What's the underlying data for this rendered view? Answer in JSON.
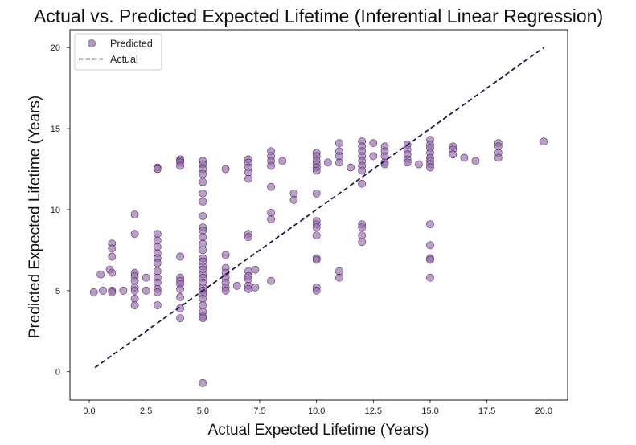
{
  "chart_data": {
    "type": "scatter",
    "title": "Actual vs. Predicted Expected Lifetime (Inferential Linear Regression)",
    "xlabel": "Actual Expected Lifetime (Years)",
    "ylabel": "Predicted Expected Lifetime (Years)",
    "xlim": [
      -0.85,
      21.05
    ],
    "ylim": [
      -1.75,
      21.1
    ],
    "xticks": [
      "0.0",
      "2.5",
      "5.0",
      "7.5",
      "10.0",
      "12.5",
      "15.0",
      "17.5",
      "20.0"
    ],
    "yticks": [
      "0",
      "5",
      "10",
      "15",
      "20"
    ],
    "grid": false,
    "legend_position": "top-left",
    "colors": {
      "point_fill": "#9c6fb0",
      "point_edge": "#3a2150",
      "line": "#1a1248"
    },
    "series": [
      {
        "name": "Predicted",
        "kind": "scatter",
        "points": [
          [
            0.2,
            4.9
          ],
          [
            0.5,
            6.0
          ],
          [
            0.6,
            5.0
          ],
          [
            0.9,
            6.3
          ],
          [
            1.0,
            7.9
          ],
          [
            1.0,
            7.6
          ],
          [
            1.0,
            7.1
          ],
          [
            1.0,
            6.1
          ],
          [
            1.0,
            5.0
          ],
          [
            1.0,
            4.9
          ],
          [
            1.5,
            5.0
          ],
          [
            2.0,
            9.7
          ],
          [
            2.0,
            8.5
          ],
          [
            2.0,
            6.1
          ],
          [
            2.0,
            5.9
          ],
          [
            2.0,
            5.6
          ],
          [
            2.0,
            5.2
          ],
          [
            2.0,
            5.0
          ],
          [
            2.0,
            4.5
          ],
          [
            2.0,
            4.1
          ],
          [
            2.5,
            5.8
          ],
          [
            2.5,
            5.0
          ],
          [
            3.0,
            12.6
          ],
          [
            3.0,
            12.5
          ],
          [
            3.0,
            8.5
          ],
          [
            3.0,
            8.1
          ],
          [
            3.0,
            7.7
          ],
          [
            3.0,
            7.3
          ],
          [
            3.0,
            7.0
          ],
          [
            3.0,
            6.7
          ],
          [
            3.0,
            6.2
          ],
          [
            3.0,
            5.8
          ],
          [
            3.0,
            5.5
          ],
          [
            3.0,
            5.1
          ],
          [
            3.0,
            4.9
          ],
          [
            3.0,
            4.1
          ],
          [
            4.0,
            13.1
          ],
          [
            4.0,
            13.0
          ],
          [
            4.0,
            12.9
          ],
          [
            4.0,
            12.7
          ],
          [
            4.0,
            7.1
          ],
          [
            4.0,
            5.8
          ],
          [
            4.0,
            5.6
          ],
          [
            4.0,
            5.4
          ],
          [
            4.0,
            5.1
          ],
          [
            4.0,
            4.6
          ],
          [
            4.0,
            3.9
          ],
          [
            4.0,
            3.3
          ],
          [
            5.0,
            13.0
          ],
          [
            5.0,
            12.8
          ],
          [
            5.0,
            12.5
          ],
          [
            5.0,
            12.2
          ],
          [
            5.0,
            11.7
          ],
          [
            5.0,
            11.0
          ],
          [
            5.0,
            10.5
          ],
          [
            5.0,
            9.6
          ],
          [
            5.0,
            8.9
          ],
          [
            5.0,
            8.7
          ],
          [
            5.0,
            8.3
          ],
          [
            5.0,
            7.9
          ],
          [
            5.0,
            7.5
          ],
          [
            5.0,
            7.0
          ],
          [
            5.0,
            6.8
          ],
          [
            5.0,
            6.5
          ],
          [
            5.0,
            6.3
          ],
          [
            5.0,
            6.0
          ],
          [
            5.0,
            5.8
          ],
          [
            5.0,
            5.5
          ],
          [
            5.0,
            5.2
          ],
          [
            5.0,
            5.0
          ],
          [
            5.0,
            4.8
          ],
          [
            5.0,
            4.5
          ],
          [
            5.0,
            4.1
          ],
          [
            5.0,
            3.7
          ],
          [
            5.0,
            3.4
          ],
          [
            5.0,
            3.3
          ],
          [
            5.0,
            -0.7
          ],
          [
            6.0,
            12.5
          ],
          [
            6.0,
            7.2
          ],
          [
            6.0,
            6.4
          ],
          [
            6.0,
            6.1
          ],
          [
            6.0,
            5.8
          ],
          [
            6.0,
            5.5
          ],
          [
            6.0,
            5.2
          ],
          [
            6.0,
            5.0
          ],
          [
            6.5,
            5.3
          ],
          [
            7.0,
            13.1
          ],
          [
            7.0,
            12.9
          ],
          [
            7.0,
            12.6
          ],
          [
            7.0,
            12.3
          ],
          [
            7.0,
            11.9
          ],
          [
            7.0,
            8.5
          ],
          [
            7.0,
            8.3
          ],
          [
            7.0,
            6.2
          ],
          [
            7.0,
            5.9
          ],
          [
            7.0,
            5.7
          ],
          [
            7.0,
            5.3
          ],
          [
            7.0,
            5.1
          ],
          [
            7.3,
            6.3
          ],
          [
            7.3,
            5.2
          ],
          [
            8.0,
            13.6
          ],
          [
            8.0,
            13.3
          ],
          [
            8.0,
            13.0
          ],
          [
            8.0,
            12.7
          ],
          [
            8.0,
            11.4
          ],
          [
            8.0,
            9.8
          ],
          [
            8.0,
            9.4
          ],
          [
            8.0,
            5.6
          ],
          [
            8.5,
            13.0
          ],
          [
            9.0,
            11.0
          ],
          [
            9.0,
            10.6
          ],
          [
            10.0,
            13.5
          ],
          [
            10.0,
            13.3
          ],
          [
            10.0,
            13.0
          ],
          [
            10.0,
            12.8
          ],
          [
            10.0,
            12.6
          ],
          [
            10.0,
            12.4
          ],
          [
            10.0,
            11.0
          ],
          [
            10.0,
            9.3
          ],
          [
            10.0,
            9.1
          ],
          [
            10.0,
            8.9
          ],
          [
            10.0,
            8.4
          ],
          [
            10.0,
            7.0
          ],
          [
            10.0,
            6.9
          ],
          [
            10.0,
            5.2
          ],
          [
            10.0,
            5.0
          ],
          [
            10.5,
            12.9
          ],
          [
            11.0,
            14.1
          ],
          [
            11.0,
            13.6
          ],
          [
            11.0,
            13.3
          ],
          [
            11.0,
            12.9
          ],
          [
            11.0,
            6.2
          ],
          [
            11.0,
            5.8
          ],
          [
            11.5,
            12.6
          ],
          [
            12.0,
            14.2
          ],
          [
            12.0,
            13.9
          ],
          [
            12.0,
            13.6
          ],
          [
            12.0,
            13.3
          ],
          [
            12.0,
            13.0
          ],
          [
            12.0,
            12.7
          ],
          [
            12.0,
            12.4
          ],
          [
            12.0,
            11.6
          ],
          [
            12.0,
            9.1
          ],
          [
            12.0,
            8.9
          ],
          [
            12.0,
            8.4
          ],
          [
            12.0,
            8.0
          ],
          [
            12.5,
            14.1
          ],
          [
            12.5,
            13.3
          ],
          [
            13.0,
            13.9
          ],
          [
            13.0,
            13.6
          ],
          [
            13.0,
            13.3
          ],
          [
            13.0,
            12.9
          ],
          [
            13.0,
            12.8
          ],
          [
            14.0,
            14.0
          ],
          [
            14.0,
            13.7
          ],
          [
            14.0,
            13.4
          ],
          [
            14.0,
            13.1
          ],
          [
            14.0,
            12.9
          ],
          [
            14.5,
            12.8
          ],
          [
            15.0,
            14.3
          ],
          [
            15.0,
            14.0
          ],
          [
            15.0,
            13.8
          ],
          [
            15.0,
            13.5
          ],
          [
            15.0,
            13.2
          ],
          [
            15.0,
            13.0
          ],
          [
            15.0,
            12.8
          ],
          [
            15.0,
            12.6
          ],
          [
            15.0,
            9.1
          ],
          [
            15.0,
            7.8
          ],
          [
            15.0,
            7.0
          ],
          [
            15.0,
            6.9
          ],
          [
            15.0,
            5.8
          ],
          [
            16.0,
            13.9
          ],
          [
            16.0,
            13.7
          ],
          [
            16.0,
            13.4
          ],
          [
            16.5,
            13.2
          ],
          [
            17.0,
            13.0
          ],
          [
            18.0,
            14.1
          ],
          [
            18.0,
            13.9
          ],
          [
            18.0,
            13.5
          ],
          [
            18.0,
            13.2
          ],
          [
            20.0,
            14.2
          ]
        ]
      },
      {
        "name": "Actual",
        "kind": "line",
        "x": [
          0.25,
          20.0
        ],
        "y": [
          0.25,
          20.0
        ]
      }
    ]
  }
}
